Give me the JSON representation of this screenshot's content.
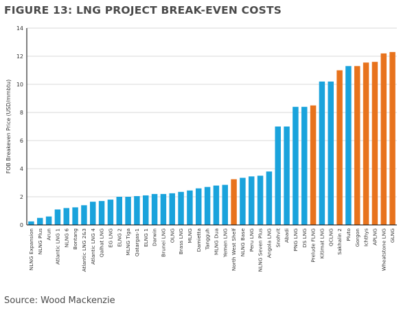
{
  "title": "FIGURE 13: LNG PROJECT BREAK-EVEN COSTS",
  "source": "Source: Wood Mackenzie",
  "colors": {
    "blue": "#1aa3dc",
    "orange": "#e8731d",
    "grid": "#d8d8d8",
    "axis": "#000000"
  },
  "chart_data": {
    "type": "bar",
    "ylabel": "FOB Breakeven Price (USD/mmbtu)",
    "xlabel": "",
    "ylim": [
      0,
      14
    ],
    "yticks": [
      0,
      2,
      4,
      6,
      8,
      10,
      12,
      14
    ],
    "grid": true,
    "categories": [
      "NLNG Expansion",
      "NLNG Plus",
      "Arun",
      "Atlantic LNG 1",
      "NLNG 6",
      "Bontang",
      "Atlantic LNG 2&3",
      "Atlantic LNG 4",
      "Qalhat LNG",
      "EG LNG",
      "ELNG 2",
      "MLNG Tiga",
      "Qatargas-1",
      "ELNG 1",
      "Darwin",
      "Brunei LNG",
      "OLNG",
      "Brass LNG",
      "MLNG",
      "Damietta",
      "Tangguh",
      "MLNG Dua",
      "Yemen LNG",
      "North West Shelf",
      "NLNG Base",
      "Peru LNG",
      "NLNG Seven Plus",
      "Angola LNG",
      "Snohvit",
      "Abadi",
      "PNG LNG",
      "DS LNG",
      "Prelude FLNG",
      "Kitimat LNG",
      "QCLNG",
      "Sakhalin 2",
      "Pluto",
      "Gorgon",
      "Ichthys",
      "APLNG",
      "Wheatstone LNG",
      "GLNG"
    ],
    "values": [
      0.25,
      0.5,
      0.6,
      1.1,
      1.2,
      1.25,
      1.4,
      1.65,
      1.7,
      1.8,
      2.0,
      2.0,
      2.05,
      2.1,
      2.2,
      2.2,
      2.25,
      2.35,
      2.45,
      2.6,
      2.7,
      2.8,
      2.85,
      3.25,
      3.35,
      3.45,
      3.5,
      3.8,
      7.0,
      7.0,
      8.4,
      8.4,
      8.5,
      10.2,
      10.2,
      11.0,
      11.3,
      11.3,
      11.55,
      11.6,
      12.2,
      12.3
    ],
    "bar_colors": [
      "blue",
      "blue",
      "blue",
      "blue",
      "blue",
      "blue",
      "blue",
      "blue",
      "blue",
      "blue",
      "blue",
      "blue",
      "blue",
      "blue",
      "blue",
      "blue",
      "blue",
      "blue",
      "blue",
      "blue",
      "blue",
      "blue",
      "blue",
      "orange",
      "blue",
      "blue",
      "blue",
      "blue",
      "blue",
      "blue",
      "blue",
      "blue",
      "orange",
      "blue",
      "blue",
      "orange",
      "blue",
      "orange",
      "orange",
      "orange",
      "orange",
      "orange"
    ]
  }
}
